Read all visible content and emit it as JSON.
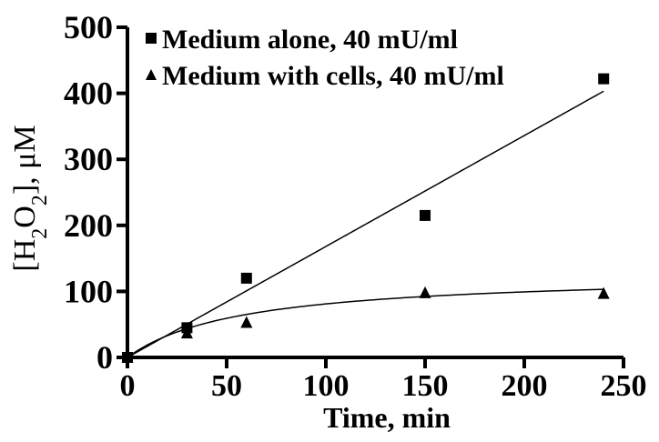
{
  "chart_data": {
    "type": "scatter",
    "xlabel": "Time, min",
    "ylabel_parts": {
      "open": "[H",
      "sub1": "2",
      "mid": "O",
      "sub2": "2",
      "close": "], μM"
    },
    "xlim": [
      0,
      250
    ],
    "ylim": [
      0,
      500
    ],
    "xticks": [
      "0",
      "50",
      "100",
      "150",
      "200",
      "250"
    ],
    "yticks": [
      "0",
      "100",
      "200",
      "300",
      "400",
      "500"
    ],
    "legend_position": "top-left",
    "series": [
      {
        "name": "Medium alone, 40 mU/ml",
        "marker": "square",
        "color": "#000000",
        "x": [
          0,
          30,
          60,
          150,
          240
        ],
        "y": [
          0,
          45,
          120,
          215,
          422
        ],
        "fit": {
          "type": "linear",
          "slope": 1.68,
          "intercept": 0
        }
      },
      {
        "name": "Medium with cells, 40 mU/ml",
        "marker": "triangle",
        "color": "#000000",
        "x": [
          0,
          30,
          60,
          150,
          240
        ],
        "y": [
          0,
          37,
          53,
          98,
          97
        ],
        "fit": {
          "type": "saturation",
          "vmax": 128,
          "k": 58
        }
      }
    ]
  }
}
